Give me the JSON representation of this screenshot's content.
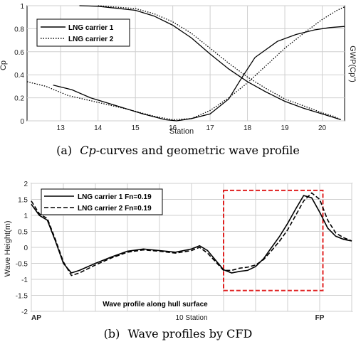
{
  "chart_data": [
    {
      "type": "line",
      "caption": {
        "label": "(a)",
        "italic": "Cp",
        "rest": "-curves and geometric wave profile"
      },
      "xlabel": "Station",
      "ylabel_left": "Cp",
      "ylabel_right": "GWP(Cp\")",
      "xlim": [
        12.1,
        20.6
      ],
      "ylim": [
        0,
        1
      ],
      "xticks": [
        13,
        14,
        15,
        16,
        17,
        18,
        19,
        20
      ],
      "yticks": [
        0,
        0.2,
        0.4,
        0.6,
        0.8,
        1
      ],
      "ytick_labels": [
        "0",
        "0.2",
        "0.4",
        "0.6",
        "0.8",
        "1"
      ],
      "grid": true,
      "legend_position": "top-left",
      "series": [
        {
          "name": "LNG carrier 1",
          "style": "solid",
          "x": [
            13.5,
            14,
            15,
            15.5,
            16,
            16.5,
            17,
            17.5,
            18,
            18.5,
            19,
            19.5,
            20,
            20.3,
            20.5
          ],
          "y": [
            1.0,
            0.995,
            0.96,
            0.91,
            0.83,
            0.72,
            0.58,
            0.45,
            0.34,
            0.25,
            0.17,
            0.11,
            0.06,
            0.03,
            0.01
          ]
        },
        {
          "name": "LNG carrier 2",
          "style": "dotted",
          "x": [
            14,
            15,
            15.5,
            16,
            16.5,
            17,
            17.5,
            18,
            18.5,
            19,
            19.5,
            20,
            20.3,
            20.5
          ],
          "y": [
            1.0,
            0.975,
            0.93,
            0.86,
            0.76,
            0.63,
            0.5,
            0.38,
            0.28,
            0.19,
            0.13,
            0.07,
            0.04,
            0.01
          ]
        },
        {
          "name": "",
          "style": "solid",
          "x": [
            12.8,
            13.3,
            13.8,
            14.5,
            15.2,
            15.8,
            16.1,
            16.5,
            17,
            17.5,
            17.8,
            18.2,
            18.8,
            19.3,
            19.8,
            20.2,
            20.6
          ],
          "y": [
            0.31,
            0.27,
            0.2,
            0.13,
            0.06,
            0.01,
            0.0,
            0.02,
            0.06,
            0.19,
            0.35,
            0.55,
            0.69,
            0.75,
            0.79,
            0.81,
            0.82
          ]
        },
        {
          "name": "",
          "style": "dotted",
          "x": [
            12.1,
            12.6,
            13.2,
            14,
            14.8,
            15.5,
            16,
            16.5,
            17,
            17.5,
            18,
            18.5,
            19,
            19.5,
            20,
            20.4,
            20.6
          ],
          "y": [
            0.34,
            0.3,
            0.22,
            0.16,
            0.1,
            0.04,
            0.01,
            0.02,
            0.09,
            0.2,
            0.33,
            0.48,
            0.63,
            0.76,
            0.88,
            0.96,
            0.99
          ]
        }
      ]
    },
    {
      "type": "line",
      "caption": {
        "label": "(b)",
        "italic": "",
        "rest": "Wave profiles by CFD"
      },
      "ylabel": "Wave Height(m)",
      "xlim": [
        0,
        20
      ],
      "ylim": [
        -2,
        2
      ],
      "xticks_labels": [
        {
          "x": 0,
          "label": "AP"
        },
        {
          "x": 10,
          "label": "10 Station"
        },
        {
          "x": 18,
          "label": "FP"
        }
      ],
      "grid_x": [
        0,
        2,
        4,
        6,
        8,
        10,
        12,
        14,
        16,
        18,
        20
      ],
      "yticks": [
        -2,
        -1.5,
        -1,
        -0.5,
        0,
        0.5,
        1,
        1.5,
        2
      ],
      "ytick_labels": [
        "-2",
        "-1.5",
        "-1",
        "-0.5",
        "0",
        "0.5",
        "1",
        "1.5",
        "2"
      ],
      "annotation": "Wave profile along hull surface",
      "highlight_box": {
        "x": [
          12,
          18.2
        ],
        "y": [
          -1.35,
          1.78
        ],
        "color": "#e02020"
      },
      "legend_position": "top-left",
      "series": [
        {
          "name": "LNG carrier 1 Fn=0.19",
          "style": "solid",
          "x": [
            0,
            0.5,
            1,
            1.5,
            2,
            2.5,
            3,
            4,
            5,
            6,
            7,
            8,
            9,
            10,
            10.5,
            11,
            12,
            12.5,
            13,
            13.5,
            14,
            14.5,
            15,
            15.5,
            16,
            16.5,
            17,
            17.5,
            18,
            18.5,
            19,
            19.5,
            20
          ],
          "y": [
            1.35,
            1.0,
            0.85,
            0.2,
            -0.5,
            -0.8,
            -0.72,
            -0.5,
            -0.3,
            -0.12,
            -0.05,
            -0.1,
            -0.15,
            -0.05,
            0.05,
            -0.1,
            -0.7,
            -0.8,
            -0.75,
            -0.72,
            -0.6,
            -0.35,
            0.0,
            0.35,
            0.75,
            1.2,
            1.62,
            1.55,
            1.1,
            0.6,
            0.35,
            0.25,
            0.2
          ]
        },
        {
          "name": "LNG carrier 2 Fn=0.19",
          "style": "dashed",
          "x": [
            0,
            0.5,
            1,
            1.5,
            2,
            2.5,
            3,
            4,
            5,
            6,
            7,
            8,
            9,
            10,
            10.5,
            11,
            12,
            12.5,
            13,
            13.5,
            14,
            14.5,
            15,
            15.5,
            16,
            16.5,
            17,
            17.5,
            18,
            18.5,
            19,
            19.5,
            20
          ],
          "y": [
            1.45,
            1.05,
            0.9,
            0.25,
            -0.45,
            -0.88,
            -0.8,
            -0.55,
            -0.33,
            -0.15,
            -0.08,
            -0.12,
            -0.18,
            -0.1,
            0.0,
            -0.18,
            -0.72,
            -0.72,
            -0.65,
            -0.62,
            -0.55,
            -0.38,
            -0.1,
            0.2,
            0.55,
            1.0,
            1.45,
            1.7,
            1.5,
            0.85,
            0.45,
            0.3,
            0.2
          ]
        }
      ]
    }
  ]
}
